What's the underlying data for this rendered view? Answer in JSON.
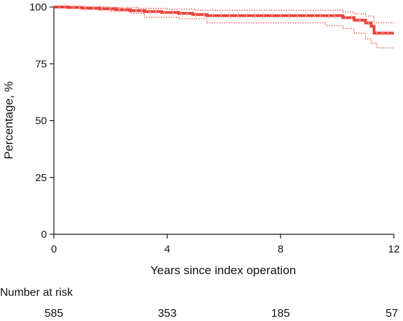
{
  "chart_data": {
    "type": "line",
    "title": "",
    "xlabel": "Years since index operation",
    "ylabel": "Percentage, %",
    "xlim": [
      0,
      12
    ],
    "ylim": [
      0,
      100
    ],
    "xticks": [
      0,
      4,
      8,
      12
    ],
    "yticks": [
      0,
      25,
      50,
      75,
      100
    ],
    "grid": false,
    "series": [
      {
        "role": "estimate",
        "color": "#e8453c",
        "style": "solid",
        "x": [
          0,
          0.5,
          1.0,
          1.6,
          2.2,
          2.7,
          3.2,
          3.8,
          4.4,
          4.9,
          5.4,
          9.6,
          10.2,
          10.6,
          11.0,
          11.2,
          11.3,
          12.0
        ],
        "y": [
          100,
          99.8,
          99.5,
          99.2,
          98.8,
          98.4,
          98.0,
          97.6,
          97.2,
          96.7,
          96.2,
          96.2,
          95.3,
          94.2,
          93.0,
          91.5,
          88.5,
          88.5
        ]
      },
      {
        "role": "upper-ci",
        "color": "#e8453c",
        "style": "dotted",
        "x": [
          0,
          1.0,
          2.0,
          3.0,
          4.0,
          5.0,
          9.6,
          10.2,
          10.6,
          11.0,
          11.3,
          12.0
        ],
        "y": [
          100,
          100,
          99.8,
          99.4,
          99.0,
          98.6,
          98.6,
          97.8,
          97.0,
          96.0,
          93.0,
          93.0
        ]
      },
      {
        "role": "lower-ci",
        "color": "#e8453c",
        "style": "dotted",
        "x": [
          0,
          0.5,
          1.2,
          2.0,
          2.7,
          3.2,
          4.4,
          5.4,
          9.0,
          9.6,
          10.2,
          10.6,
          11.0,
          11.2,
          11.4,
          12.0
        ],
        "y": [
          100,
          99.6,
          99.0,
          98.2,
          97.2,
          95.5,
          94.8,
          93.0,
          93.0,
          91.8,
          90.5,
          88.5,
          86.0,
          84.0,
          82.0,
          82.0
        ]
      }
    ],
    "censor_marks_x": [
      0.2,
      0.4,
      0.7,
      0.9,
      1.1,
      1.4,
      1.7,
      2.0,
      2.3,
      2.5,
      2.9,
      3.1,
      3.4,
      3.6,
      3.9,
      4.2,
      4.5,
      4.7,
      5.0,
      5.3,
      5.6,
      5.9,
      6.2,
      6.5,
      6.8,
      7.1,
      7.4,
      7.7,
      8.0,
      8.3,
      8.6,
      8.9,
      9.2,
      9.4,
      9.7,
      9.9,
      10.3,
      10.5,
      10.8,
      11.1,
      11.4,
      11.6,
      11.8
    ]
  },
  "risk_table": {
    "title": "Number at risk",
    "times": [
      0,
      4,
      8,
      12
    ],
    "counts": [
      "585",
      "353",
      "185",
      "57"
    ]
  }
}
